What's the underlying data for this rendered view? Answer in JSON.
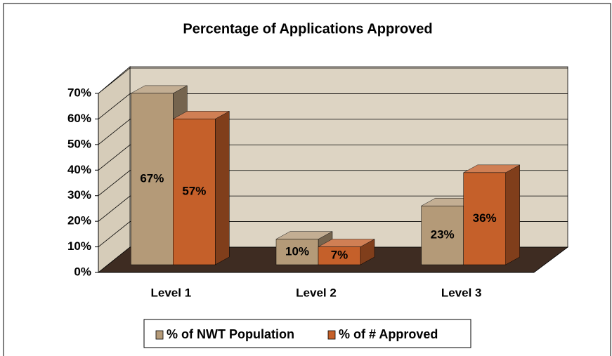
{
  "chart_data": {
    "type": "bar",
    "title": "Percentage of Applications Approved",
    "categories": [
      "Level 1",
      "Level 2",
      "Level 3"
    ],
    "series": [
      {
        "name": "% of NWT Population",
        "color": "#b49a78",
        "values": [
          67,
          10,
          23
        ],
        "value_labels": [
          "67%",
          "10%",
          "23%"
        ]
      },
      {
        "name": "% of # Approved",
        "color": "#c5602a",
        "values": [
          57,
          7,
          36
        ],
        "value_labels": [
          "57%",
          "7%",
          "36%"
        ]
      }
    ],
    "ylim": [
      0,
      70
    ],
    "yticks": [
      {
        "value": 0,
        "label": "0%"
      },
      {
        "value": 10,
        "label": "10%"
      },
      {
        "value": 20,
        "label": "20%"
      },
      {
        "value": 30,
        "label": "30%"
      },
      {
        "value": 40,
        "label": "40%"
      },
      {
        "value": 50,
        "label": "50%"
      },
      {
        "value": 60,
        "label": "60%"
      },
      {
        "value": 70,
        "label": "70%"
      }
    ],
    "grid": true,
    "legend": "bottom"
  }
}
